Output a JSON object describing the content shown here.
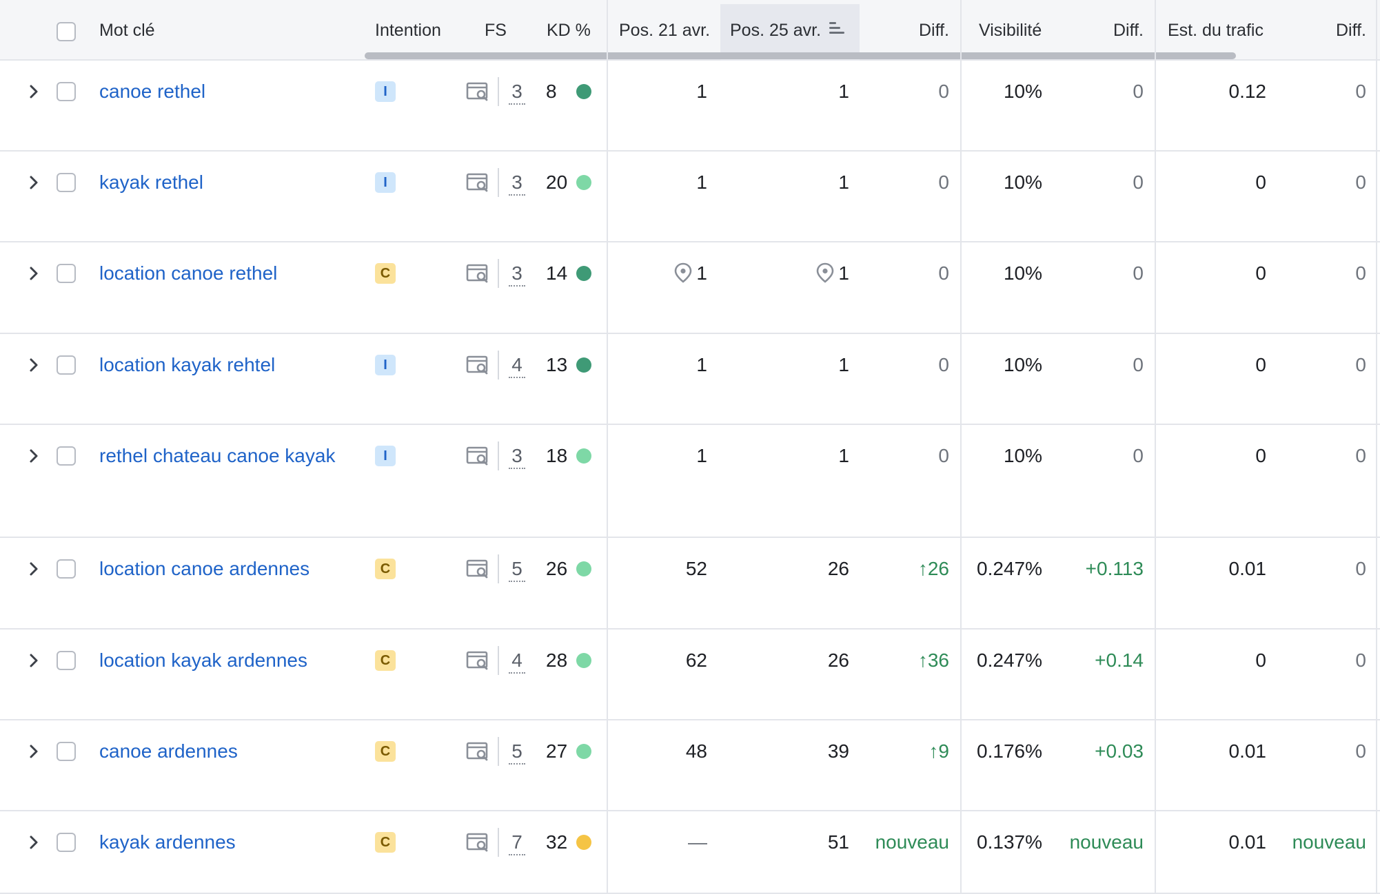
{
  "header": {
    "keyword": "Mot clé",
    "intent": "Intention",
    "fs": "FS",
    "kd": "KD %",
    "pos_prev": "Pos. 21 avr.",
    "pos_curr": "Pos. 25 avr.",
    "diff": "Diff.",
    "visibility": "Visibilité",
    "diff2": "Diff.",
    "traffic": "Est. du trafic",
    "diff3": "Diff."
  },
  "colors": {
    "link": "#1f63c8",
    "kd_dark_green": "#3f9a76",
    "kd_light_green": "#7ed8a6",
    "kd_yellow": "#f5c445",
    "positive": "#2e8b57",
    "intent_I_bg": "#cfe6fb",
    "intent_C_bg": "#fbe29b"
  },
  "rows": [
    {
      "keyword": "canoe rethel",
      "intent": "I",
      "fs": "3",
      "kd": "8",
      "kd_level": "dark-green",
      "pos_prev": "1",
      "pos_curr": "1",
      "diff": "0",
      "visibility": "10%",
      "diff2": "0",
      "traffic": "0.12",
      "diff3": "0"
    },
    {
      "keyword": "kayak rethel",
      "intent": "I",
      "fs": "3",
      "kd": "20",
      "kd_level": "light-green",
      "pos_prev": "1",
      "pos_curr": "1",
      "diff": "0",
      "visibility": "10%",
      "diff2": "0",
      "traffic": "0",
      "diff3": "0"
    },
    {
      "keyword": "location canoe rethel",
      "intent": "C",
      "fs": "3",
      "kd": "14",
      "kd_level": "dark-green",
      "pos_prev": "1",
      "pos_curr": "1",
      "local_pin": true,
      "diff": "0",
      "visibility": "10%",
      "diff2": "0",
      "traffic": "0",
      "diff3": "0"
    },
    {
      "keyword": "location kayak rehtel",
      "intent": "I",
      "fs": "4",
      "kd": "13",
      "kd_level": "dark-green",
      "pos_prev": "1",
      "pos_curr": "1",
      "diff": "0",
      "visibility": "10%",
      "diff2": "0",
      "traffic": "0",
      "diff3": "0"
    },
    {
      "keyword": "rethel chateau canoe kayak",
      "intent": "I",
      "fs": "3",
      "kd": "18",
      "kd_level": "light-green",
      "pos_prev": "1",
      "pos_curr": "1",
      "diff": "0",
      "visibility": "10%",
      "diff2": "0",
      "traffic": "0",
      "diff3": "0"
    },
    {
      "keyword": "location canoe ardennes",
      "intent": "C",
      "fs": "5",
      "kd": "26",
      "kd_level": "light-green",
      "pos_prev": "52",
      "pos_curr": "26",
      "diff": "26",
      "diff_up": true,
      "visibility": "0.247%",
      "diff2": "+0.113",
      "traffic": "0.01",
      "diff3": "0"
    },
    {
      "keyword": "location kayak ardennes",
      "intent": "C",
      "fs": "4",
      "kd": "28",
      "kd_level": "light-green",
      "pos_prev": "62",
      "pos_curr": "26",
      "diff": "36",
      "diff_up": true,
      "visibility": "0.247%",
      "diff2": "+0.14",
      "traffic": "0",
      "diff3": "0"
    },
    {
      "keyword": "canoe ardennes",
      "intent": "C",
      "fs": "5",
      "kd": "27",
      "kd_level": "light-green",
      "pos_prev": "48",
      "pos_curr": "39",
      "diff": "9",
      "diff_up": true,
      "visibility": "0.176%",
      "diff2": "+0.03",
      "traffic": "0.01",
      "diff3": "0"
    },
    {
      "keyword": "kayak ardennes",
      "intent": "C",
      "fs": "7",
      "kd": "32",
      "kd_level": "yellow",
      "pos_prev": "—",
      "pos_curr": "51",
      "diff": "nouveau",
      "visibility": "0.137%",
      "diff2": "nouveau",
      "traffic": "0.01",
      "diff3": "nouveau"
    }
  ]
}
